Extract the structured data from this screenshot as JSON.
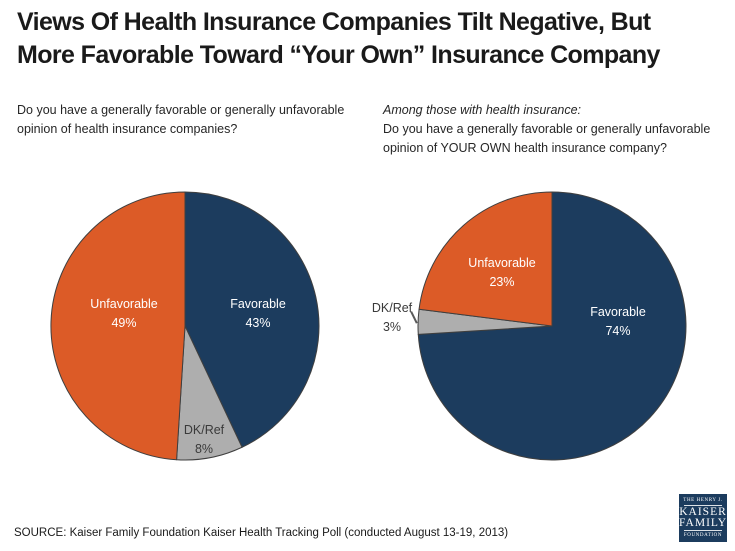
{
  "title": {
    "line1": "Views Of Health Insurance Companies Tilt Negative, But",
    "line2": "More Favorable Toward “Your Own” Insurance Company"
  },
  "questions": {
    "left": {
      "line1": "Do you have a generally favorable or generally unfavorable",
      "line2": "opinion of health insurance companies?"
    },
    "right": {
      "intro": "Among those with health insurance:",
      "line1": "Do you have a generally favorable or generally unfavorable",
      "line2": "opinion of YOUR OWN health insurance company?"
    }
  },
  "chart_data": [
    {
      "type": "pie",
      "question": "Do you have a generally favorable or generally unfavorable opinion of health insurance companies?",
      "start_angle_deg": 0,
      "direction": "clockwise",
      "legend": "none",
      "labels": "inside",
      "slices": [
        {
          "label": "Favorable",
          "value": 43,
          "pct_label": "43%",
          "color": "#1c3c5e",
          "label_color": "#ffffff",
          "label_placement": "inside"
        },
        {
          "label": "DK/Ref",
          "value": 8,
          "pct_label": "8%",
          "color": "#aeaeae",
          "label_color": "#3a3a3a",
          "label_placement": "inside"
        },
        {
          "label": "Unfavorable",
          "value": 49,
          "pct_label": "49%",
          "color": "#dc5b27",
          "label_color": "#ffffff",
          "label_placement": "inside"
        }
      ]
    },
    {
      "type": "pie",
      "question": "Among those with health insurance: Do you have a generally favorable or generally unfavorable opinion of YOUR OWN health insurance company?",
      "start_angle_deg": 0,
      "direction": "clockwise",
      "legend": "none",
      "labels": "inside",
      "slices": [
        {
          "label": "Favorable",
          "value": 74,
          "pct_label": "74%",
          "color": "#1c3c5e",
          "label_color": "#ffffff",
          "label_placement": "inside"
        },
        {
          "label": "DK/Ref",
          "value": 3,
          "pct_label": "3%",
          "color": "#aeaeae",
          "label_color": "#3a3a3a",
          "label_placement": "outside-left-with-leader"
        },
        {
          "label": "Unfavorable",
          "value": 23,
          "pct_label": "23%",
          "color": "#dc5b27",
          "label_color": "#ffffff",
          "label_placement": "inside"
        }
      ]
    }
  ],
  "source": "SOURCE: Kaiser Family Foundation Kaiser Health Tracking Poll (conducted August 13-19, 2013)",
  "logo": {
    "top": "THE HENRY J.",
    "name1": "KAISER",
    "name2": "FAMILY",
    "bottom": "FOUNDATION"
  },
  "colors": {
    "navy": "#1c3c5e",
    "orange": "#dc5b27",
    "gray": "#aeaeae",
    "slice_outline": "#3f3f3f",
    "title_text": "#1a1a1a",
    "body_text": "#262626",
    "background": "#ffffff"
  }
}
